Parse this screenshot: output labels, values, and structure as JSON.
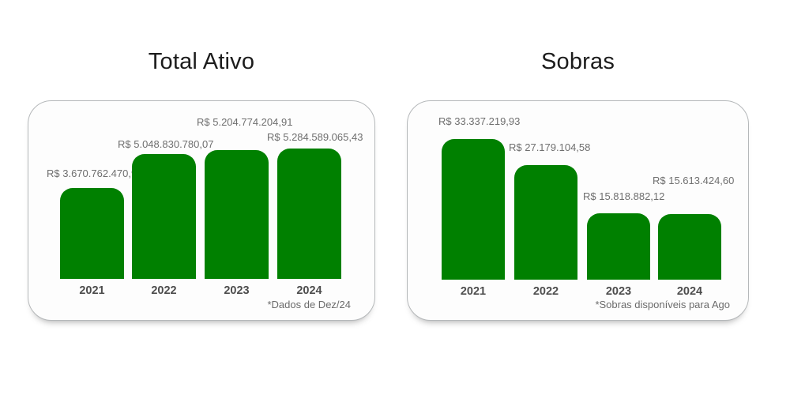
{
  "theme": {
    "bar_green": "#008000",
    "title_color": "#1c1c1c",
    "label_gray": "#6f6f6f",
    "year_gray": "#4d4d4d",
    "card_border": "#b5b8ba",
    "card_background": "#fdfdfd",
    "page_background": "#ffffff"
  },
  "chart_data": [
    {
      "type": "bar",
      "title": "Total Ativo",
      "categories": [
        "2021",
        "2022",
        "2023",
        "2024"
      ],
      "values": [
        3670762470.96,
        5048830780.07,
        5204774204.91,
        5284589065.43
      ],
      "value_labels": [
        "R$ 3.670.762.470,96",
        "R$ 5.048.830.780,07",
        "R$ 5.204.774.204,91",
        "R$ 5.284.589.065,43"
      ],
      "footnote": "*Dados de Dez/24",
      "bar_color": "#008000",
      "currency": "BRL",
      "xlabel": "",
      "ylabel": "",
      "ylim": [
        0,
        5284589065.43
      ],
      "grid": false,
      "legend": "none"
    },
    {
      "type": "bar",
      "title": "Sobras",
      "categories": [
        "2021",
        "2022",
        "2023",
        "2024"
      ],
      "values": [
        33337219.93,
        27179104.58,
        15818882.12,
        15613424.6
      ],
      "value_labels": [
        "R$ 33.337.219,93",
        "R$ 27.179.104,58",
        "R$ 15.818.882,12",
        "R$ 15.613.424,60"
      ],
      "footnote": "*Sobras disponíveis para Ago",
      "bar_color": "#008000",
      "currency": "BRL",
      "xlabel": "",
      "ylabel": "",
      "ylim": [
        0,
        33337219.93
      ],
      "grid": false,
      "legend": "none"
    }
  ]
}
